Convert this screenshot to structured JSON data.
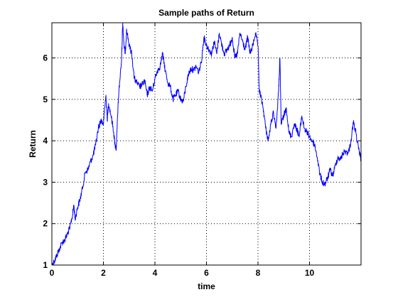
{
  "chart_data": {
    "type": "line",
    "title": "Sample paths of Return",
    "xlabel": "time",
    "ylabel": "Return",
    "xlim": [
      0,
      12
    ],
    "ylim": [
      1,
      6.85
    ],
    "xticks": [
      0,
      2,
      4,
      6,
      8,
      10
    ],
    "yticks": [
      1,
      2,
      3,
      4,
      5,
      6
    ],
    "grid": true,
    "series": [
      {
        "color": "#0000ff",
        "x": [
          0,
          0.1,
          0.2,
          0.3,
          0.4,
          0.5,
          0.6,
          0.7,
          0.8,
          0.85,
          0.9,
          1.0,
          1.1,
          1.2,
          1.3,
          1.4,
          1.5,
          1.6,
          1.7,
          1.8,
          1.9,
          2.0,
          2.05,
          2.1,
          2.15,
          2.2,
          2.3,
          2.4,
          2.45,
          2.5,
          2.55,
          2.6,
          2.7,
          2.75,
          2.8,
          2.85,
          2.9,
          3.0,
          3.1,
          3.2,
          3.3,
          3.4,
          3.5,
          3.6,
          3.7,
          3.8,
          3.9,
          4.0,
          4.1,
          4.2,
          4.3,
          4.4,
          4.5,
          4.6,
          4.7,
          4.8,
          4.9,
          5.0,
          5.1,
          5.2,
          5.3,
          5.4,
          5.5,
          5.6,
          5.7,
          5.8,
          5.9,
          6.0,
          6.1,
          6.2,
          6.3,
          6.4,
          6.5,
          6.6,
          6.7,
          6.8,
          6.9,
          7.0,
          7.1,
          7.2,
          7.3,
          7.4,
          7.5,
          7.6,
          7.7,
          7.8,
          7.9,
          8.0,
          8.05,
          8.1,
          8.2,
          8.3,
          8.4,
          8.5,
          8.6,
          8.7,
          8.8,
          8.85,
          8.9,
          9.0,
          9.1,
          9.2,
          9.3,
          9.4,
          9.5,
          9.6,
          9.7,
          9.8,
          9.9,
          10.0,
          10.1,
          10.2,
          10.3,
          10.4,
          10.5,
          10.6,
          10.7,
          10.8,
          10.9,
          11.0,
          11.1,
          11.2,
          11.3,
          11.4,
          11.5,
          11.6,
          11.7,
          11.8,
          11.9,
          12.0
        ],
        "values": [
          1.0,
          1.1,
          1.25,
          1.4,
          1.55,
          1.6,
          1.75,
          1.9,
          2.2,
          2.45,
          2.1,
          2.4,
          2.6,
          2.9,
          3.25,
          3.3,
          3.5,
          3.65,
          3.9,
          4.3,
          4.5,
          4.4,
          4.8,
          5.1,
          4.5,
          4.9,
          4.6,
          4.2,
          3.9,
          3.8,
          4.6,
          5.2,
          5.9,
          6.85,
          6.3,
          6.1,
          6.7,
          6.3,
          6.1,
          5.5,
          5.4,
          5.3,
          5.35,
          5.45,
          5.1,
          5.3,
          5.2,
          5.5,
          5.7,
          5.8,
          6.1,
          5.7,
          5.4,
          5.3,
          5.0,
          5.1,
          5.2,
          5.0,
          4.95,
          5.3,
          5.6,
          5.75,
          5.7,
          5.8,
          5.65,
          5.9,
          6.5,
          6.3,
          6.2,
          6.1,
          6.4,
          6.1,
          6.6,
          6.3,
          6.1,
          6.2,
          6.3,
          6.5,
          6.0,
          6.1,
          6.6,
          6.4,
          6.2,
          6.5,
          6.1,
          6.3,
          6.6,
          6.3,
          5.2,
          5.1,
          4.8,
          4.3,
          4.0,
          4.4,
          4.7,
          4.3,
          5.2,
          6.0,
          4.4,
          4.6,
          4.8,
          4.2,
          4.1,
          4.4,
          4.3,
          4.1,
          4.6,
          4.3,
          4.2,
          4.1,
          4.0,
          3.9,
          3.6,
          3.2,
          3.0,
          2.95,
          3.1,
          3.3,
          3.15,
          3.4,
          3.6,
          3.55,
          3.7,
          3.75,
          3.7,
          3.95,
          4.45,
          4.2,
          3.8,
          3.55
        ]
      }
    ]
  }
}
